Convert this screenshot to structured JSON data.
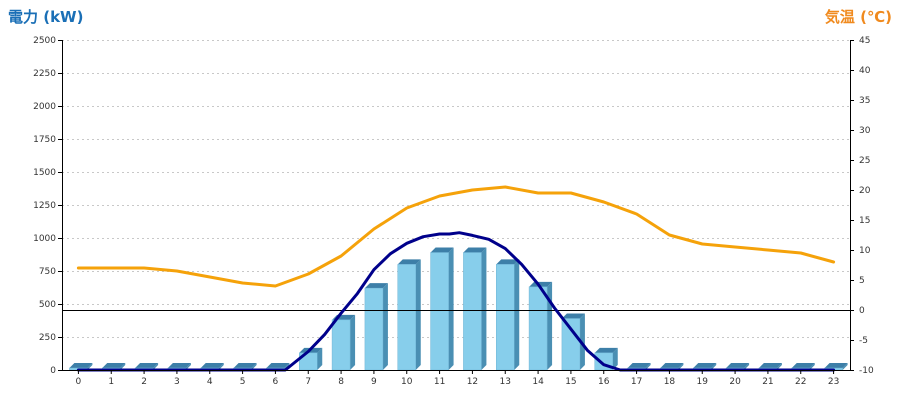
{
  "chart_data": {
    "type": "bar",
    "title": "",
    "xlabel": "",
    "ylabel": "電力 (kW)",
    "y2label": "気温 (℃)",
    "categories": [
      "0",
      "1",
      "2",
      "3",
      "4",
      "5",
      "6",
      "7",
      "8",
      "9",
      "10",
      "11",
      "12",
      "13",
      "14",
      "15",
      "16",
      "17",
      "18",
      "19",
      "20",
      "21",
      "22",
      "23"
    ],
    "ylim": [
      0,
      2500
    ],
    "yticks": [
      0,
      250,
      500,
      750,
      1000,
      1250,
      1500,
      1750,
      2000,
      2250,
      2500
    ],
    "y2lim": [
      -10,
      45
    ],
    "y2ticks": [
      -10,
      -5,
      0,
      5,
      10,
      15,
      20,
      25,
      30,
      35,
      40,
      45
    ],
    "grid": true,
    "series": [
      {
        "type": "bar",
        "axis": "left",
        "color": "#87ceeb",
        "values": [
          0,
          0,
          0,
          0,
          0,
          0,
          0,
          130,
          380,
          620,
          800,
          890,
          890,
          800,
          630,
          390,
          130,
          0,
          0,
          0,
          0,
          0,
          0,
          0
        ]
      },
      {
        "type": "line",
        "axis": "left",
        "color": "#00008b",
        "x": [
          0,
          1,
          2,
          3,
          4,
          5,
          6,
          6.3,
          7,
          7.5,
          8,
          8.5,
          9,
          9.5,
          10,
          10.5,
          11,
          11.3,
          11.6,
          12,
          12.5,
          13,
          13.5,
          14,
          14.5,
          15,
          15.5,
          16,
          16.5,
          16.7,
          17,
          18,
          19,
          20,
          21,
          22,
          23
        ],
        "values": [
          0,
          0,
          0,
          0,
          0,
          0,
          0,
          0,
          140,
          270,
          430,
          580,
          760,
          880,
          960,
          1010,
          1030,
          1030,
          1040,
          1020,
          990,
          920,
          800,
          650,
          470,
          310,
          150,
          40,
          0,
          0,
          0,
          0,
          0,
          0,
          0,
          0,
          0
        ]
      },
      {
        "type": "line",
        "axis": "right",
        "color": "#f5a20a",
        "x": [
          0,
          1,
          2,
          3,
          4,
          5,
          6,
          7,
          8,
          9,
          10,
          11,
          12,
          13,
          14,
          15,
          16,
          17,
          18,
          19,
          20,
          21,
          22,
          23
        ],
        "values": [
          7,
          7,
          7,
          6.5,
          5.5,
          4.5,
          4,
          6,
          9,
          13.5,
          17,
          19,
          20,
          20.5,
          19.5,
          19.5,
          18,
          16,
          12.5,
          11,
          10.5,
          10,
          9.5,
          8
        ]
      }
    ]
  }
}
